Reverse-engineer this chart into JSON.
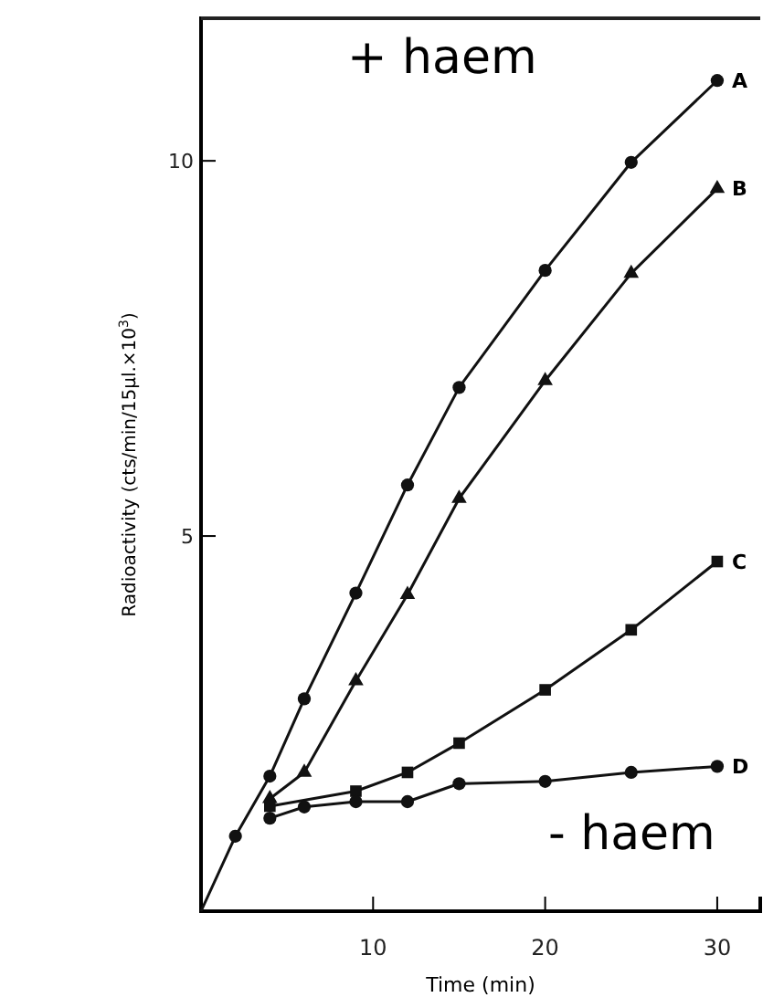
{
  "chart_data": {
    "type": "line",
    "xlabel": "Time (min)",
    "ylabel": "Radioactivity (cts/min/15μl.×10$^{3}$)",
    "xlim": [
      0,
      32.5
    ],
    "ylim": [
      0,
      11.9
    ],
    "xticks": [
      10,
      20,
      30
    ],
    "yticks": [
      5,
      10
    ],
    "grid": false,
    "legend": false,
    "line_style": "solid",
    "series": [
      {
        "name": "A",
        "color": "#111111",
        "marker": "circle",
        "x": [
          0,
          2,
          4,
          6,
          9,
          12,
          15,
          20,
          25,
          30
        ],
        "values": [
          0,
          1,
          1.8,
          2.83,
          4.24,
          5.68,
          6.98,
          8.54,
          9.98,
          11.07
        ]
      },
      {
        "name": "B",
        "color": "#111111",
        "marker": "triangle",
        "x": [
          4,
          6,
          9,
          12,
          15,
          20,
          25,
          30
        ],
        "values": [
          1.5,
          1.85,
          3.07,
          4.22,
          5.5,
          7.07,
          8.5,
          9.63
        ]
      },
      {
        "name": "C",
        "color": "#111111",
        "marker": "square",
        "x": [
          4,
          9,
          12,
          15,
          20,
          25,
          30
        ],
        "values": [
          1.4,
          1.6,
          1.85,
          2.24,
          2.95,
          3.75,
          4.66
        ]
      },
      {
        "name": "D",
        "color": "#111111",
        "marker": "circle",
        "x": [
          4,
          6,
          9,
          12,
          15,
          20,
          25,
          30
        ],
        "values": [
          1.24,
          1.39,
          1.46,
          1.46,
          1.7,
          1.73,
          1.85,
          1.93
        ]
      }
    ],
    "annotations": [
      "+ haem",
      "- haem"
    ]
  }
}
